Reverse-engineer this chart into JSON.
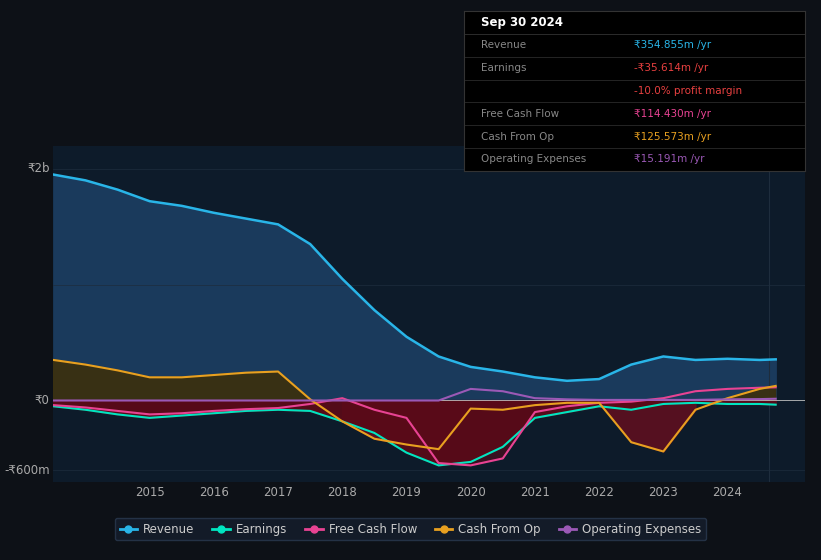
{
  "bg_color": "#0d1117",
  "plot_bg_color": "#0d1b2a",
  "grid_color": "#1e2d3d",
  "years": [
    2013.5,
    2014,
    2014.5,
    2015,
    2015.5,
    2016,
    2016.5,
    2017,
    2017.5,
    2018,
    2018.5,
    2019,
    2019.5,
    2020,
    2020.5,
    2021,
    2021.5,
    2022,
    2022.5,
    2023,
    2023.5,
    2024,
    2024.5,
    2024.75
  ],
  "revenue": [
    1950,
    1900,
    1820,
    1720,
    1680,
    1620,
    1570,
    1520,
    1350,
    1050,
    780,
    550,
    380,
    290,
    250,
    200,
    170,
    185,
    310,
    380,
    350,
    360,
    350,
    355
  ],
  "earnings": [
    -50,
    -80,
    -120,
    -150,
    -130,
    -110,
    -90,
    -80,
    -90,
    -180,
    -280,
    -450,
    -560,
    -530,
    -400,
    -150,
    -100,
    -50,
    -80,
    -30,
    -20,
    -30,
    -30,
    -36
  ],
  "fcf": [
    -40,
    -60,
    -90,
    -120,
    -110,
    -90,
    -75,
    -65,
    -30,
    20,
    -80,
    -150,
    -540,
    -560,
    -500,
    -100,
    -50,
    -20,
    -10,
    20,
    80,
    100,
    110,
    114
  ],
  "cash_from_op": [
    350,
    310,
    260,
    200,
    200,
    220,
    240,
    250,
    10,
    -180,
    -330,
    -380,
    -420,
    -70,
    -80,
    -40,
    -20,
    -20,
    -360,
    -440,
    -80,
    20,
    100,
    126
  ],
  "op_expenses": [
    0,
    0,
    0,
    0,
    0,
    0,
    0,
    0,
    0,
    0,
    0,
    0,
    0,
    100,
    80,
    20,
    10,
    5,
    5,
    5,
    5,
    10,
    12,
    15
  ],
  "revenue_color": "#29b5e8",
  "earnings_color": "#00e5c0",
  "fcf_color": "#e84393",
  "cash_from_op_color": "#e8a020",
  "op_expenses_color": "#9b59b6",
  "revenue_fill": "#1a3a5c",
  "xlim": [
    2013.5,
    2025.2
  ],
  "ylim": [
    -700,
    2200
  ],
  "xticks": [
    2015,
    2016,
    2017,
    2018,
    2019,
    2020,
    2021,
    2022,
    2023,
    2024
  ],
  "legend_items": [
    {
      "label": "Revenue",
      "color": "#29b5e8"
    },
    {
      "label": "Earnings",
      "color": "#00e5c0"
    },
    {
      "label": "Free Cash Flow",
      "color": "#e84393"
    },
    {
      "label": "Cash From Op",
      "color": "#e8a020"
    },
    {
      "label": "Operating Expenses",
      "color": "#9b59b6"
    }
  ],
  "info_box": {
    "title": "Sep 30 2024",
    "rows": [
      {
        "label": "Revenue",
        "value": "₹354.855m /yr",
        "value_color": "#29b5e8"
      },
      {
        "label": "Earnings",
        "value": "-₹35.614m /yr",
        "value_color": "#e84040"
      },
      {
        "label": "",
        "value": "-10.0% profit margin",
        "value_color": "#e84040"
      },
      {
        "label": "Free Cash Flow",
        "value": "₹114.430m /yr",
        "value_color": "#e84393"
      },
      {
        "label": "Cash From Op",
        "value": "₹125.573m /yr",
        "value_color": "#e8a020"
      },
      {
        "label": "Operating Expenses",
        "value": "₹15.191m /yr",
        "value_color": "#9b59b6"
      }
    ]
  }
}
